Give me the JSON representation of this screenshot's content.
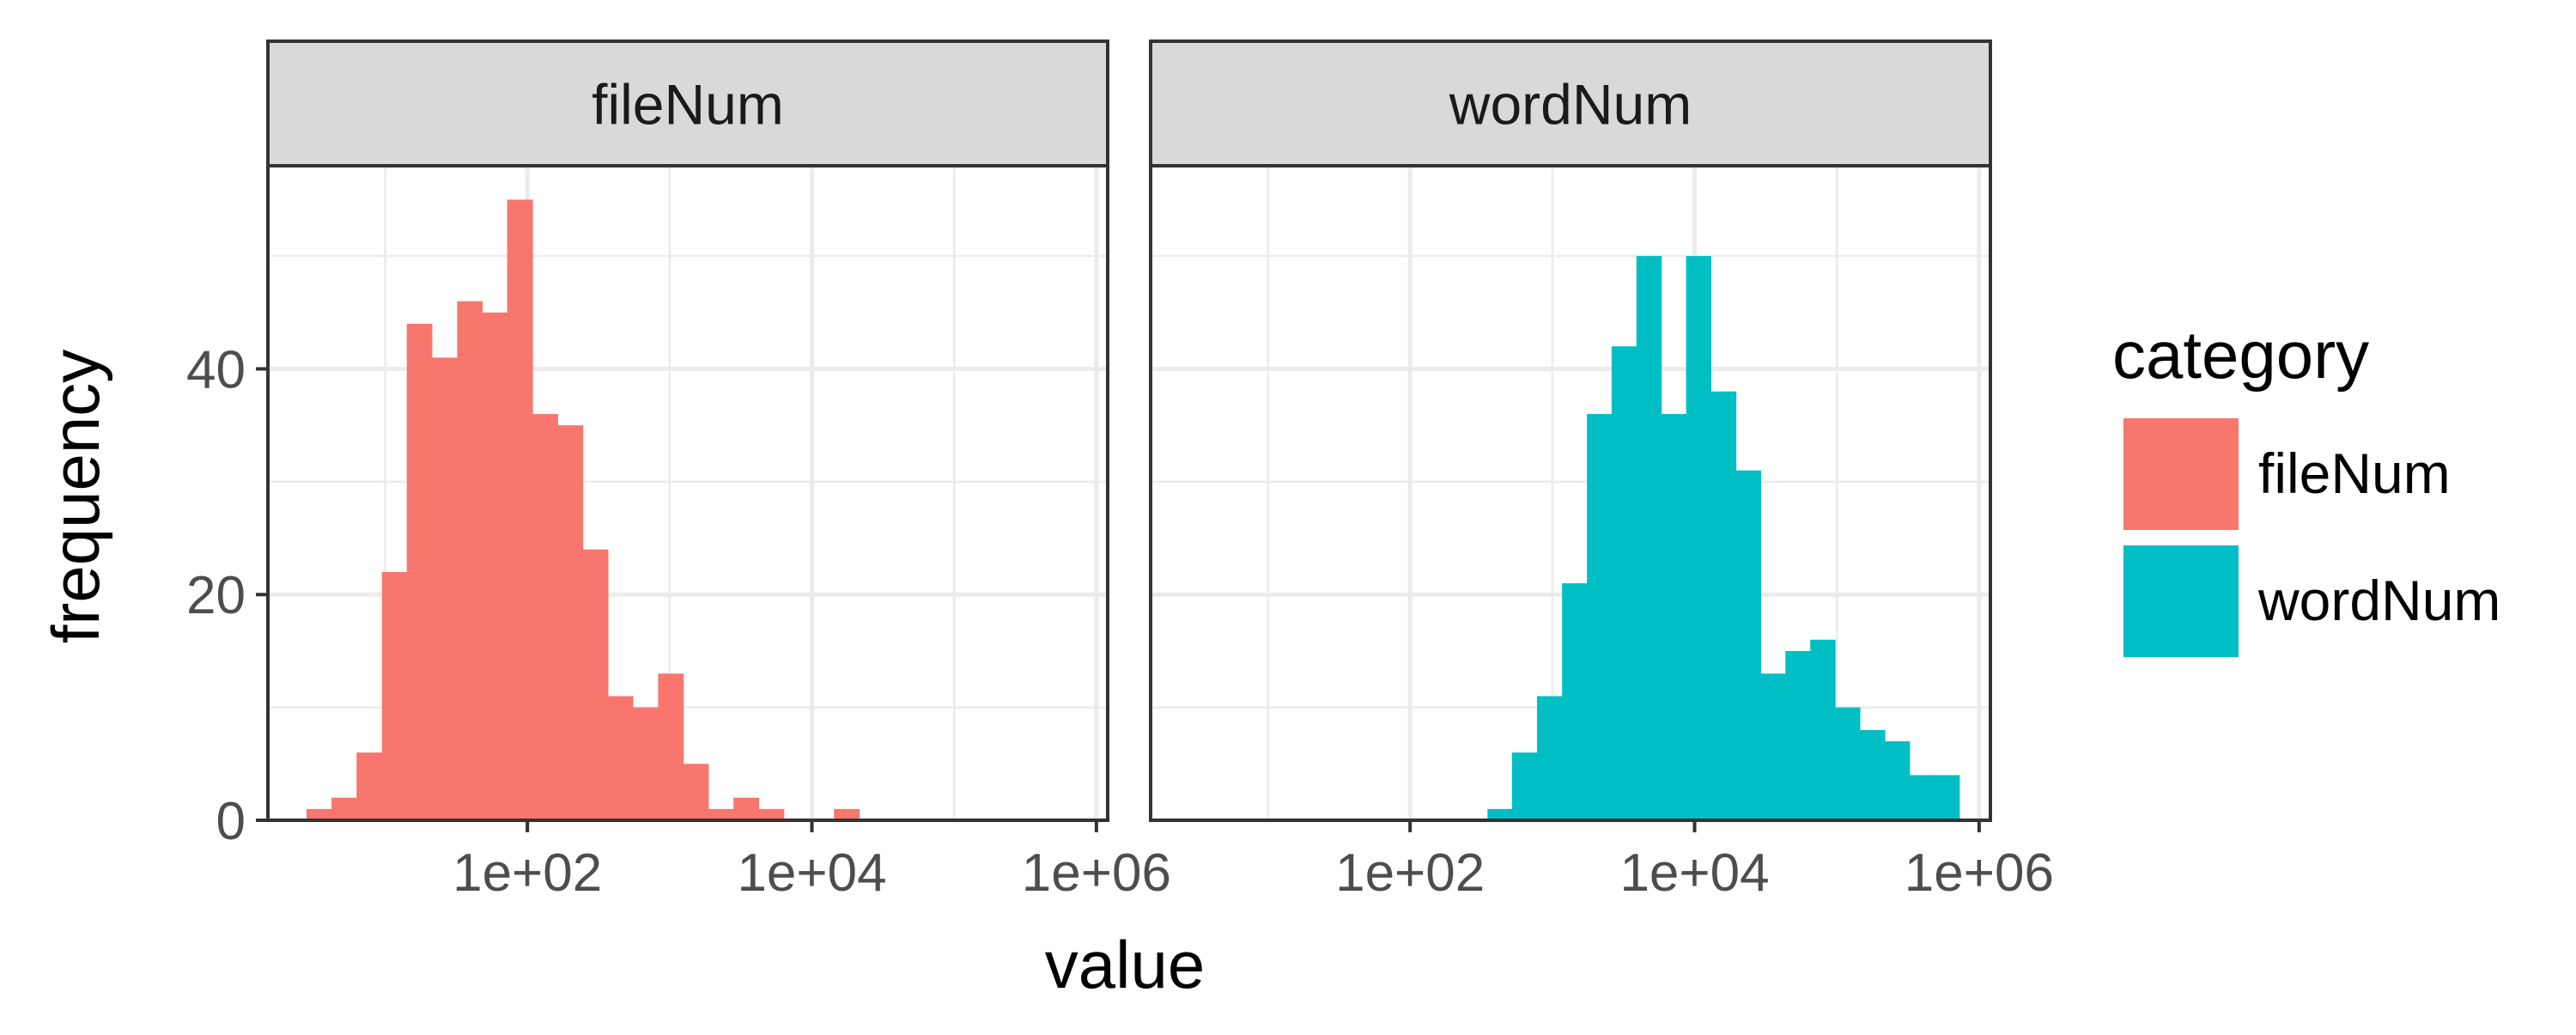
{
  "chart_data": {
    "type": "bar",
    "subtype": "faceted-histogram",
    "xlabel": "value",
    "ylabel": "frequency",
    "x_scale": "log10",
    "xlim": [
      1.5,
      1200000
    ],
    "ylim": [
      0,
      58
    ],
    "x_ticks": [
      {
        "value": 100,
        "label": "1e+02"
      },
      {
        "value": 10000,
        "label": "1e+04"
      },
      {
        "value": 1000000,
        "label": "1e+06"
      }
    ],
    "y_ticks": [
      {
        "value": 0,
        "label": "0"
      },
      {
        "value": 20,
        "label": "20"
      },
      {
        "value": 40,
        "label": "40"
      }
    ],
    "grid": true,
    "legend": {
      "title": "category",
      "position": "right",
      "entries": [
        {
          "label": "fileNum",
          "color": "#F8766D"
        },
        {
          "label": "wordNum",
          "color": "#00BFC4"
        }
      ]
    },
    "panels": [
      {
        "strip_label": "fileNum",
        "color": "#F8766D",
        "bins": [
          {
            "x0": 2.8,
            "x1": 4.2,
            "count": 1
          },
          {
            "x0": 4.2,
            "x1": 6.3,
            "count": 2
          },
          {
            "x0": 6.3,
            "x1": 9.5,
            "count": 6
          },
          {
            "x0": 9.5,
            "x1": 14.2,
            "count": 22
          },
          {
            "x0": 14.2,
            "x1": 21.3,
            "count": 44
          },
          {
            "x0": 21.3,
            "x1": 32.1,
            "count": 41
          },
          {
            "x0": 32.1,
            "x1": 48.1,
            "count": 46
          },
          {
            "x0": 48.1,
            "x1": 72.1,
            "count": 45
          },
          {
            "x0": 72.1,
            "x1": 108.5,
            "count": 55
          },
          {
            "x0": 108.5,
            "x1": 163,
            "count": 36
          },
          {
            "x0": 163,
            "x1": 245,
            "count": 35
          },
          {
            "x0": 245,
            "x1": 368,
            "count": 24
          },
          {
            "x0": 368,
            "x1": 552,
            "count": 11
          },
          {
            "x0": 552,
            "x1": 830,
            "count": 10
          },
          {
            "x0": 830,
            "x1": 1245,
            "count": 13
          },
          {
            "x0": 1245,
            "x1": 1870,
            "count": 5
          },
          {
            "x0": 1870,
            "x1": 2810,
            "count": 1
          },
          {
            "x0": 2810,
            "x1": 4220,
            "count": 2
          },
          {
            "x0": 4220,
            "x1": 6340,
            "count": 1
          },
          {
            "x0": 6340,
            "x1": 9520,
            "count": 0
          },
          {
            "x0": 9520,
            "x1": 14300,
            "count": 0
          },
          {
            "x0": 14300,
            "x1": 21500,
            "count": 1
          }
        ]
      },
      {
        "strip_label": "wordNum",
        "color": "#00BFC4",
        "bins": [
          {
            "x0": 350,
            "x1": 520,
            "count": 1
          },
          {
            "x0": 520,
            "x1": 780,
            "count": 6
          },
          {
            "x0": 780,
            "x1": 1170,
            "count": 11
          },
          {
            "x0": 1170,
            "x1": 1750,
            "count": 21
          },
          {
            "x0": 1750,
            "x1": 2610,
            "count": 36
          },
          {
            "x0": 2610,
            "x1": 3900,
            "count": 42
          },
          {
            "x0": 3900,
            "x1": 5830,
            "count": 50
          },
          {
            "x0": 5830,
            "x1": 8710,
            "count": 36
          },
          {
            "x0": 8710,
            "x1": 13000,
            "count": 50
          },
          {
            "x0": 13000,
            "x1": 19500,
            "count": 38
          },
          {
            "x0": 19500,
            "x1": 29100,
            "count": 31
          },
          {
            "x0": 29100,
            "x1": 43500,
            "count": 13
          },
          {
            "x0": 43500,
            "x1": 65000,
            "count": 15
          },
          {
            "x0": 65000,
            "x1": 97100,
            "count": 16
          },
          {
            "x0": 97100,
            "x1": 145000,
            "count": 10
          },
          {
            "x0": 145000,
            "x1": 217000,
            "count": 8
          },
          {
            "x0": 217000,
            "x1": 324000,
            "count": 7
          },
          {
            "x0": 324000,
            "x1": 485000,
            "count": 4
          },
          {
            "x0": 485000,
            "x1": 725000,
            "count": 4
          }
        ]
      }
    ]
  }
}
